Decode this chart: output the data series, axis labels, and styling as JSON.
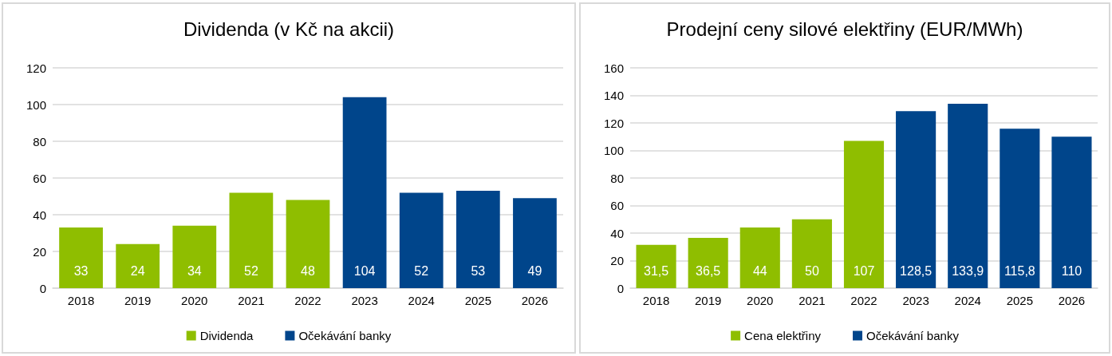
{
  "chart_data": [
    {
      "type": "bar",
      "title": "Dividenda (v Kč na akcii)",
      "categories": [
        "2018",
        "2019",
        "2020",
        "2021",
        "2022",
        "2023",
        "2024",
        "2025",
        "2026"
      ],
      "stacked": true,
      "ylim": [
        0,
        120
      ],
      "yticks": [
        0,
        20,
        40,
        60,
        80,
        100,
        120
      ],
      "grid": "y",
      "legend": "bottom",
      "series": [
        {
          "name": "Dividenda",
          "color": "#8fbe00",
          "values": [
            33,
            24,
            34,
            52,
            48,
            null,
            null,
            null,
            null
          ],
          "value_labels": [
            "33",
            "24",
            "34",
            "52",
            "48",
            null,
            null,
            null,
            null
          ]
        },
        {
          "name": "Očekávání banky",
          "color": "#00458b",
          "values": [
            null,
            null,
            null,
            null,
            null,
            104,
            52,
            53,
            49
          ],
          "value_labels": [
            null,
            null,
            null,
            null,
            null,
            "104",
            "52",
            "53",
            "49"
          ]
        }
      ]
    },
    {
      "type": "bar",
      "title": "Prodejní ceny silové elektřiny (EUR/MWh)",
      "categories": [
        "2018",
        "2019",
        "2020",
        "2021",
        "2022",
        "2023",
        "2024",
        "2025",
        "2026"
      ],
      "stacked": true,
      "ylim": [
        0,
        160
      ],
      "yticks": [
        0,
        20,
        40,
        60,
        80,
        100,
        120,
        140,
        160
      ],
      "grid": "y",
      "legend": "bottom",
      "series": [
        {
          "name": "Cena elektřiny",
          "color": "#8fbe00",
          "values": [
            31.5,
            36.5,
            44,
            50,
            107,
            null,
            null,
            null,
            null
          ],
          "value_labels": [
            "31,5",
            "36,5",
            "44",
            "50",
            "107",
            null,
            null,
            null,
            null
          ]
        },
        {
          "name": "Očekávání banky",
          "color": "#00458b",
          "values": [
            null,
            null,
            null,
            null,
            null,
            128.5,
            133.9,
            115.8,
            110
          ],
          "value_labels": [
            null,
            null,
            null,
            null,
            null,
            "128,5",
            "133,9",
            "115,8",
            "110"
          ]
        }
      ]
    }
  ]
}
